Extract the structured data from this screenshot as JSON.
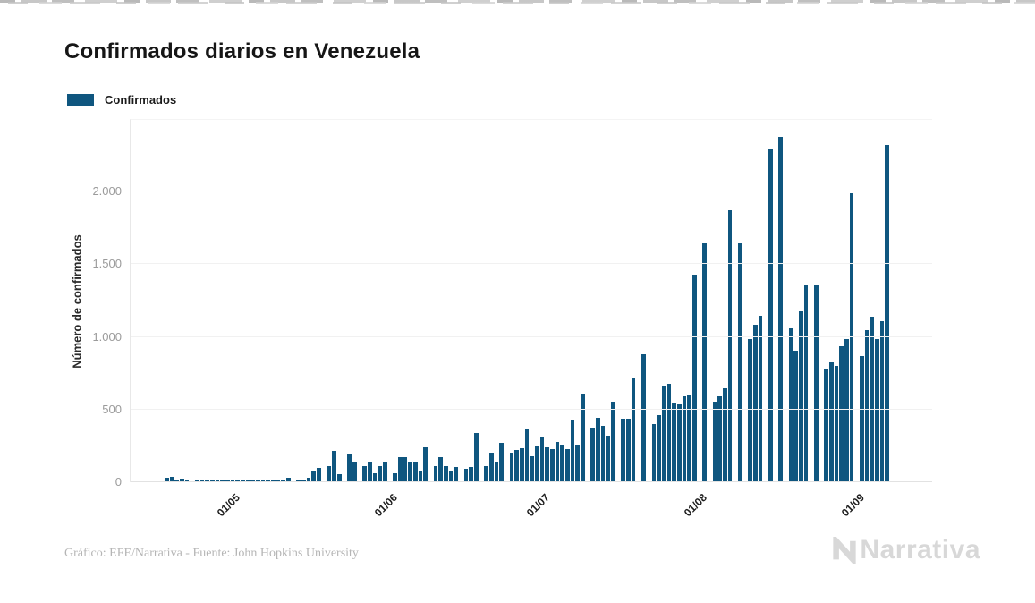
{
  "header": {
    "title": "Confirmados diarios en Venezuela"
  },
  "legend": {
    "label": "Confirmados",
    "swatch_color": "#0f567f"
  },
  "footer": {
    "credit": "Gráfico: EFE/Narrativa - Fuente: John Hopkins University",
    "brand": "Narrativa",
    "brand_color": "#d8d8d8"
  },
  "chart_data": {
    "type": "bar",
    "title": "Confirmados diarios en Venezuela",
    "xlabel": "",
    "ylabel": "Número de confirmados",
    "series_name": "Confirmados",
    "bar_color": "#0f567f",
    "grid": "horizontal",
    "legend_position": "top-left",
    "ylim": [
      0,
      2500
    ],
    "y_ticks": [
      {
        "value": 0,
        "label": "0"
      },
      {
        "value": 500,
        "label": "500"
      },
      {
        "value": 1000,
        "label": "1.000"
      },
      {
        "value": 1500,
        "label": "1.500"
      },
      {
        "value": 2000,
        "label": "2.000"
      }
    ],
    "x_tick_labels": [
      {
        "label": "01/05",
        "index": 13
      },
      {
        "label": "01/06",
        "index": 44
      },
      {
        "label": "01/07",
        "index": 74
      },
      {
        "label": "01/08",
        "index": 105
      },
      {
        "label": "01/09",
        "index": 136
      }
    ],
    "x_range_note": "daily bars, first bar 18/04, last bar 07/09",
    "values": [
      30,
      35,
      12,
      25,
      18,
      8,
      12,
      15,
      10,
      18,
      12,
      10,
      14,
      12,
      15,
      10,
      18,
      12,
      15,
      10,
      12,
      20,
      16,
      14,
      30,
      0,
      20,
      16,
      29,
      82,
      98,
      0,
      113,
      216,
      55,
      0,
      191,
      145,
      0,
      113,
      140,
      62,
      113,
      140,
      0,
      62,
      175,
      175,
      140,
      140,
      82,
      243,
      0,
      113,
      175,
      113,
      82,
      107,
      0,
      92,
      107,
      340,
      0,
      113,
      202,
      145,
      274,
      0,
      205,
      220,
      237,
      370,
      180,
      253,
      315,
      241,
      227,
      278,
      262,
      227,
      432,
      257,
      612,
      0,
      377,
      443,
      387,
      319,
      556,
      0,
      437,
      437,
      717,
      0,
      885,
      0,
      400,
      463,
      658,
      679,
      545,
      535,
      595,
      607,
      1430,
      0,
      1646,
      0,
      555,
      595,
      650,
      1877,
      0,
      1650,
      0,
      990,
      1085,
      1150,
      0,
      2298,
      0,
      2384,
      0,
      1060,
      910,
      1177,
      1358,
      0,
      1358,
      0,
      786,
      827,
      800,
      936,
      990,
      1995,
      0,
      868,
      1049,
      1142,
      990,
      1111,
      2325
    ]
  }
}
